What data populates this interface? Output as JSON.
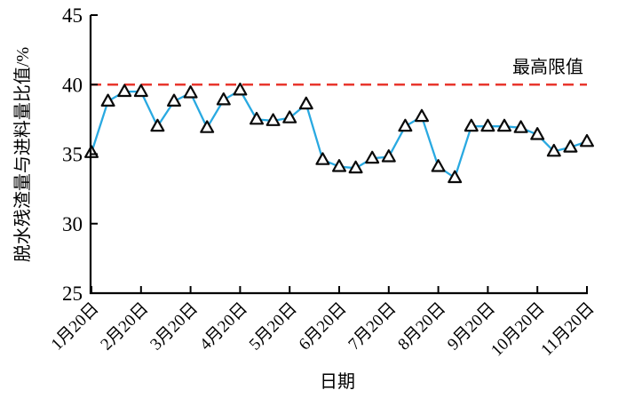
{
  "chart_data": {
    "type": "line",
    "title": "",
    "xlabel": "日期",
    "ylabel": "脱水残渣量与进料量比值/%",
    "ylim": [
      25,
      45
    ],
    "yticks": [
      25,
      30,
      35,
      40,
      45
    ],
    "x_tick_labels": [
      "1月20日",
      "2月20日",
      "3月20日",
      "4月20日",
      "5月20日",
      "6月20日",
      "7月20日",
      "8月20日",
      "9月20日",
      "10月20日",
      "11月20日"
    ],
    "x_tick_point_indices": [
      0,
      3,
      6,
      9,
      12,
      15,
      18,
      21,
      24,
      27,
      30
    ],
    "values": [
      35.1,
      38.8,
      39.5,
      39.5,
      37.0,
      38.8,
      39.4,
      36.9,
      38.9,
      39.6,
      37.5,
      37.4,
      37.6,
      38.6,
      34.6,
      34.1,
      34.0,
      34.7,
      34.8,
      37.0,
      37.7,
      34.1,
      33.3,
      37.0,
      37.0,
      37.0,
      36.9,
      36.4,
      35.2,
      35.5,
      35.9
    ],
    "limit_line": {
      "label": "最高限值",
      "value": 40,
      "color": "#e8362d",
      "style": "dashed"
    },
    "line_color": "#29a9e1",
    "marker": {
      "shape": "triangle-up",
      "fill": "#ffffff",
      "stroke": "#0a0a0a"
    },
    "axis_color": "#000000",
    "grid": false,
    "legend": "none"
  }
}
